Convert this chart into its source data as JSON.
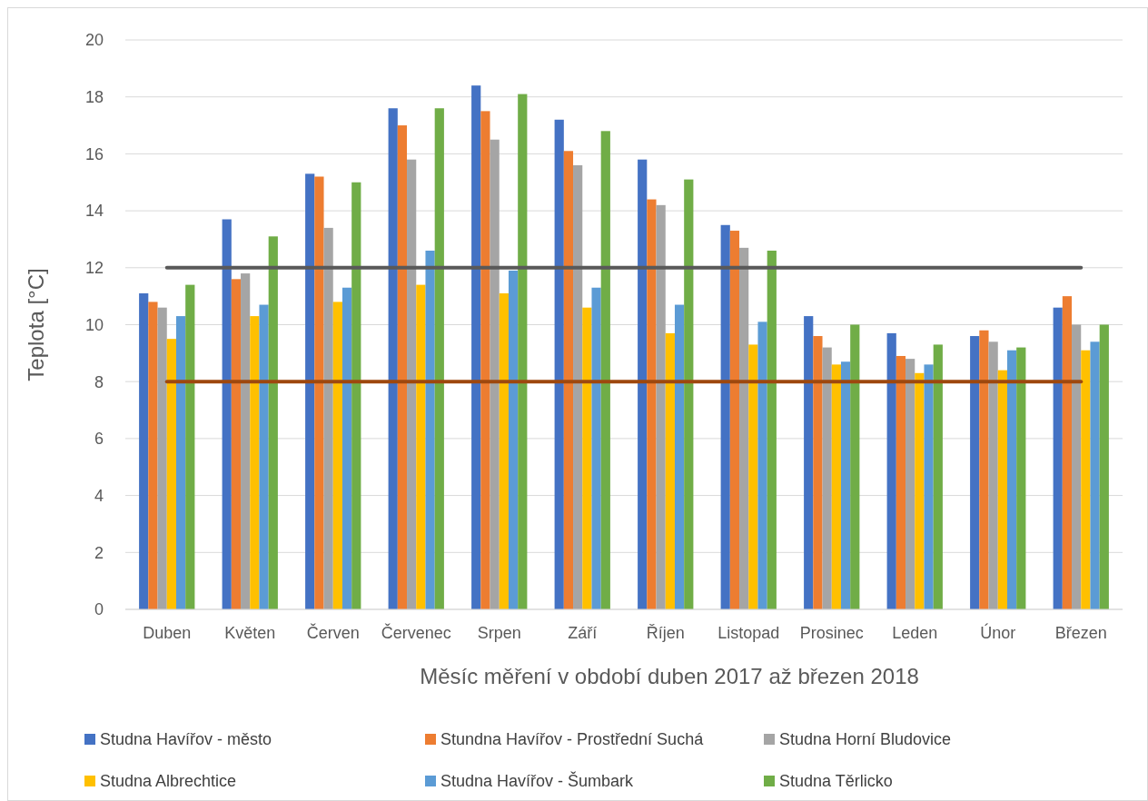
{
  "chart_data": {
    "type": "bar",
    "xlabel": "Měsíc měření v období duben 2017 až březen 2018",
    "ylabel": "Teplota [°C]",
    "categories": [
      "Duben",
      "Květen",
      "Červen",
      "Červenec",
      "Srpen",
      "Září",
      "Říjen",
      "Listopad",
      "Prosinec",
      "Leden",
      "Únor",
      "Březen"
    ],
    "series": [
      {
        "name": "Studna Havířov - město",
        "color": "#4472c4",
        "values": [
          11.1,
          13.7,
          15.3,
          17.6,
          18.4,
          17.2,
          15.8,
          13.5,
          10.3,
          9.7,
          9.6,
          10.6
        ]
      },
      {
        "name": "Stundna Havířov - Prostřední Suchá",
        "color": "#ed7d31",
        "values": [
          10.8,
          11.6,
          15.2,
          17.0,
          17.5,
          16.1,
          14.4,
          13.3,
          9.6,
          8.9,
          9.8,
          11.0
        ]
      },
      {
        "name": "Studna Horní Bludovice",
        "color": "#a5a5a5",
        "values": [
          10.6,
          11.8,
          13.4,
          15.8,
          16.5,
          15.6,
          14.2,
          12.7,
          9.2,
          8.8,
          9.4,
          10.0
        ]
      },
      {
        "name": "Studna Albrechtice",
        "color": "#ffc000",
        "values": [
          9.5,
          10.3,
          10.8,
          11.4,
          11.1,
          10.6,
          9.7,
          9.3,
          8.6,
          8.3,
          8.4,
          9.1
        ]
      },
      {
        "name": "Studna Havířov - Šumbark",
        "color": "#5b9bd5",
        "values": [
          10.3,
          10.7,
          11.3,
          12.6,
          11.9,
          11.3,
          10.7,
          10.1,
          8.7,
          8.6,
          9.1,
          9.4
        ]
      },
      {
        "name": "Studna Těrlicko",
        "color": "#70ad47",
        "values": [
          11.4,
          13.1,
          15.0,
          17.6,
          18.1,
          16.8,
          15.1,
          12.6,
          10.0,
          9.3,
          9.2,
          10.0
        ]
      }
    ],
    "ylim": [
      0,
      20
    ],
    "yticks": [
      0,
      2,
      4,
      6,
      8,
      10,
      12,
      14,
      16,
      18,
      20
    ],
    "grid": "y",
    "legend": "bottom",
    "ref_lines": [
      {
        "axis": "y",
        "value": 12,
        "color": "#595959"
      },
      {
        "axis": "y",
        "value": 8,
        "color": "#9e480e"
      }
    ]
  }
}
